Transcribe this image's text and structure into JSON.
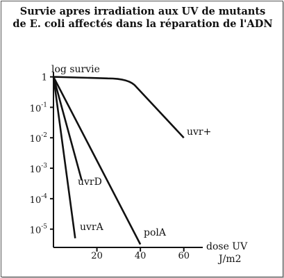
{
  "chart_data": {
    "type": "line",
    "title_line1": "Survie apres irradiation aux UV de mutants",
    "title_line2": "de E. coli affectés dans la réparation de l'ADN",
    "ylabel": "log survie",
    "xlabel_line1": "dose UV",
    "xlabel_line2": "J/m2",
    "x_ticks": [
      20,
      40,
      60
    ],
    "xlim": [
      0,
      70
    ],
    "y_scale": "log",
    "ylim_exponent": [
      -5.6,
      0.15
    ],
    "y_ticks": [
      {
        "exp": 0,
        "base": "1",
        "sup": ""
      },
      {
        "exp": -1,
        "base": "10",
        "sup": "-1"
      },
      {
        "exp": -2,
        "base": "10",
        "sup": "-2"
      },
      {
        "exp": -3,
        "base": "10",
        "sup": "-3"
      },
      {
        "exp": -4,
        "base": "10",
        "sup": "-4"
      },
      {
        "exp": -5,
        "base": "10",
        "sup": "-5"
      }
    ],
    "series": [
      {
        "name": "uvr+",
        "points": [
          {
            "x": 0,
            "y_exp": 0
          },
          {
            "x": 25,
            "y_exp": -0.05
          },
          {
            "x": 35,
            "y_exp": -0.2
          },
          {
            "x": 60,
            "y_exp": -2.0
          }
        ]
      },
      {
        "name": "uvrD",
        "points": [
          {
            "x": 0,
            "y_exp": 0
          },
          {
            "x": 13,
            "y_exp": -3.4
          }
        ]
      },
      {
        "name": "polA",
        "points": [
          {
            "x": 0,
            "y_exp": 0
          },
          {
            "x": 40,
            "y_exp": -5.5
          }
        ]
      },
      {
        "name": "uvrA",
        "points": [
          {
            "x": 0,
            "y_exp": 0
          },
          {
            "x": 10,
            "y_exp": -5.3
          }
        ]
      }
    ]
  }
}
